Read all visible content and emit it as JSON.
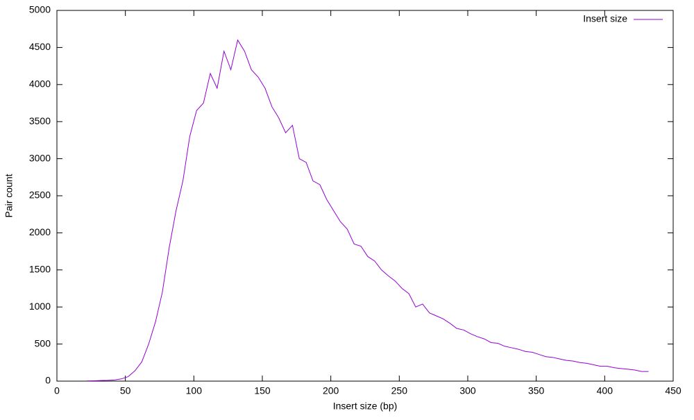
{
  "chart_data": {
    "type": "line",
    "xlabel": "Insert size (bp)",
    "ylabel": "Pair count",
    "xlim": [
      0,
      450
    ],
    "xticks": [
      0,
      50,
      100,
      150,
      200,
      250,
      300,
      350,
      400,
      450
    ],
    "ylim": [
      0,
      5000
    ],
    "yticks": [
      0,
      500,
      1000,
      1500,
      2000,
      2500,
      3000,
      3500,
      4000,
      4500,
      5000
    ],
    "grid": false,
    "legend": "upper-right",
    "x": [
      22,
      27,
      32,
      37,
      42,
      47,
      52,
      57,
      62,
      67,
      72,
      77,
      82,
      87,
      92,
      97,
      102,
      107,
      112,
      117,
      122,
      127,
      132,
      137,
      142,
      147,
      152,
      157,
      162,
      167,
      172,
      177,
      182,
      187,
      192,
      197,
      202,
      207,
      212,
      217,
      222,
      227,
      232,
      237,
      242,
      247,
      252,
      257,
      262,
      267,
      272,
      277,
      282,
      287,
      292,
      297,
      302,
      307,
      312,
      317,
      322,
      327,
      332,
      337,
      342,
      347,
      352,
      357,
      362,
      367,
      372,
      377,
      382,
      387,
      392,
      397,
      402,
      407,
      412,
      417,
      422,
      427,
      432
    ],
    "series": [
      {
        "name": "Insert size",
        "color": "#9400d3",
        "values": [
          3,
          5,
          8,
          10,
          15,
          30,
          60,
          140,
          260,
          500,
          800,
          1200,
          1800,
          2300,
          2700,
          3300,
          3650,
          3750,
          4150,
          3950,
          4450,
          4200,
          4600,
          4450,
          4200,
          4100,
          3950,
          3700,
          3550,
          3350,
          3450,
          3000,
          2950,
          2700,
          2650,
          2450,
          2300,
          2150,
          2050,
          1850,
          1820,
          1680,
          1620,
          1500,
          1420,
          1350,
          1250,
          1180,
          1000,
          1040,
          920,
          880,
          840,
          780,
          710,
          690,
          640,
          600,
          570,
          520,
          510,
          470,
          450,
          430,
          400,
          390,
          360,
          330,
          320,
          300,
          280,
          270,
          250,
          240,
          220,
          200,
          200,
          180,
          170,
          160,
          150,
          130,
          130
        ]
      }
    ]
  }
}
